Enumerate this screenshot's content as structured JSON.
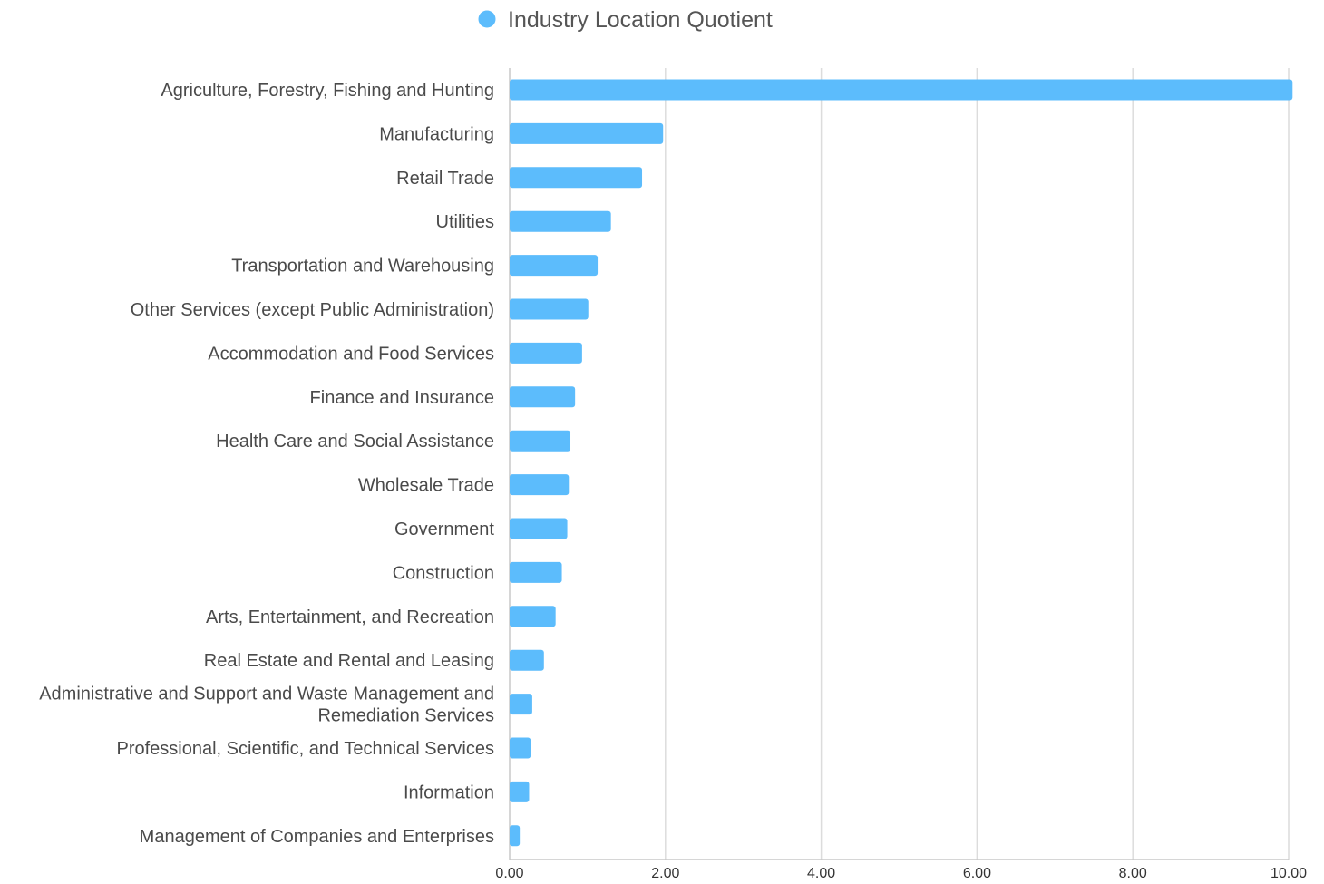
{
  "chart_data": {
    "type": "bar",
    "orientation": "horizontal",
    "categories": [
      "Agriculture, Forestry, Fishing and Hunting",
      "Manufacturing",
      "Retail Trade",
      "Utilities",
      "Transportation and Warehousing",
      "Other Services (except Public Administration)",
      "Accommodation and Food Services",
      "Finance and Insurance",
      "Health Care and Social Assistance",
      "Wholesale Trade",
      "Government",
      "Construction",
      "Arts, Entertainment, and Recreation",
      "Real Estate and Rental and Leasing",
      "Administrative and Support and Waste Management and Remediation Services",
      "Professional, Scientific, and Technical Services",
      "Information",
      "Management of Companies and Enterprises"
    ],
    "category_label_lines": [
      [
        "Agriculture, Forestry, Fishing and Hunting"
      ],
      [
        "Manufacturing"
      ],
      [
        "Retail Trade"
      ],
      [
        "Utilities"
      ],
      [
        "Transportation and Warehousing"
      ],
      [
        "Other Services (except Public Administration)"
      ],
      [
        "Accommodation and Food Services"
      ],
      [
        "Finance and Insurance"
      ],
      [
        "Health Care and Social Assistance"
      ],
      [
        "Wholesale Trade"
      ],
      [
        "Government"
      ],
      [
        "Construction"
      ],
      [
        "Arts, Entertainment, and Recreation"
      ],
      [
        "Real Estate and Rental and Leasing"
      ],
      [
        "Administrative and Support and Waste Management and",
        "Remediation Services"
      ],
      [
        "Professional, Scientific, and Technical Services"
      ],
      [
        "Information"
      ],
      [
        "Management of Companies and Enterprises"
      ]
    ],
    "series": [
      {
        "name": "Industry Location Quotient",
        "color": "#5cbcfc",
        "values": [
          10.05,
          1.97,
          1.7,
          1.3,
          1.13,
          1.01,
          0.93,
          0.84,
          0.78,
          0.76,
          0.74,
          0.67,
          0.59,
          0.44,
          0.29,
          0.27,
          0.25,
          0.13
        ]
      }
    ],
    "xlim": [
      0,
      10
    ],
    "x_ticks": [
      0,
      2,
      4,
      6,
      8,
      10
    ],
    "x_tick_labels": [
      "0.00",
      "2.00",
      "4.00",
      "6.00",
      "8.00",
      "10.00"
    ],
    "grid": true,
    "legend_position": "top-center",
    "title": "",
    "xlabel": "",
    "ylabel": ""
  }
}
